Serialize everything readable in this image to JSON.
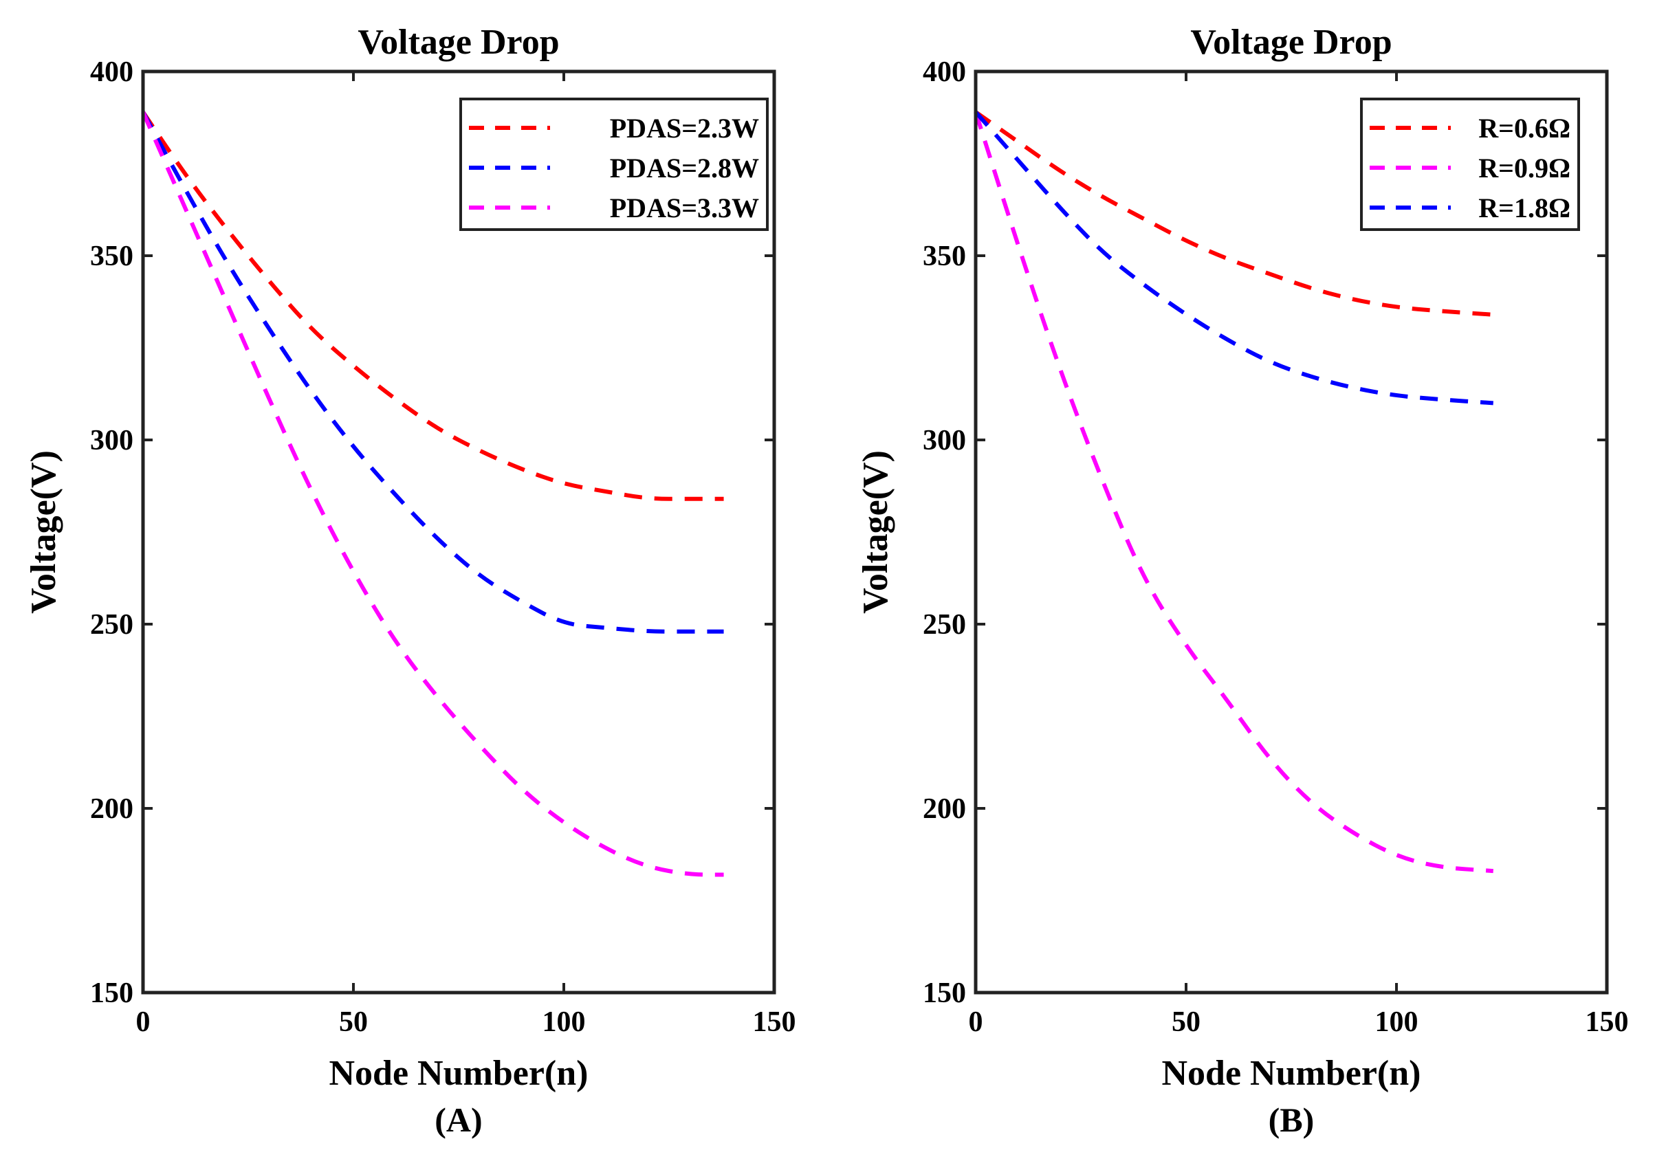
{
  "chart_data": [
    {
      "type": "line",
      "title": "Voltage Drop",
      "xlabel": "Node Number(n)",
      "ylabel": "Voltage(V)",
      "caption": "(A)",
      "xlim": [
        0,
        150
      ],
      "ylim": [
        150,
        400
      ],
      "xticks": [
        0,
        50,
        100,
        150
      ],
      "yticks": [
        150,
        200,
        250,
        300,
        350,
        400
      ],
      "grid": false,
      "legend_position": "top-right",
      "series": [
        {
          "name": "PDAS=2.3W",
          "color": "#ff0000",
          "x": [
            0,
            10,
            20,
            30,
            40,
            50,
            60,
            70,
            80,
            90,
            100,
            110,
            120,
            130,
            138
          ],
          "y": [
            389,
            372,
            357,
            343,
            330,
            320,
            311,
            303,
            297,
            292,
            288,
            286,
            284,
            284,
            284
          ]
        },
        {
          "name": "PDAS=2.8W",
          "color": "#0000ff",
          "x": [
            0,
            10,
            20,
            30,
            40,
            50,
            60,
            70,
            80,
            90,
            100,
            110,
            120,
            130,
            138
          ],
          "y": [
            389,
            368,
            348,
            330,
            313,
            298,
            285,
            273,
            263,
            256,
            250,
            249,
            248,
            248,
            248
          ]
        },
        {
          "name": "PDAS=3.3W",
          "color": "#ff00ff",
          "x": [
            0,
            10,
            20,
            30,
            40,
            50,
            60,
            70,
            80,
            90,
            100,
            110,
            120,
            130,
            138
          ],
          "y": [
            389,
            363,
            337,
            311,
            286,
            264,
            245,
            230,
            217,
            205,
            196,
            189,
            184,
            182,
            182
          ]
        }
      ]
    },
    {
      "type": "line",
      "title": "Voltage Drop",
      "xlabel": "Node Number(n)",
      "ylabel": "Voltage(V)",
      "caption": "(B)",
      "xlim": [
        0,
        150
      ],
      "ylim": [
        150,
        400
      ],
      "xticks": [
        0,
        50,
        100,
        150
      ],
      "yticks": [
        150,
        200,
        250,
        300,
        350,
        400
      ],
      "grid": false,
      "legend_position": "top-right",
      "series": [
        {
          "name": "R=0.6Ω",
          "color": "#ff0000",
          "x": [
            0,
            10,
            20,
            30,
            40,
            50,
            60,
            70,
            80,
            90,
            100,
            110,
            123
          ],
          "y": [
            389,
            381,
            373,
            366,
            360,
            354,
            349,
            345,
            341,
            338,
            336,
            335,
            334
          ]
        },
        {
          "name": "R=0.9Ω",
          "color": "#ff00ff",
          "x": [
            0,
            10,
            20,
            30,
            40,
            50,
            60,
            70,
            80,
            90,
            100,
            110,
            123
          ],
          "y": [
            389,
            353,
            319,
            289,
            262,
            244,
            229,
            213,
            201,
            193,
            187,
            184,
            183
          ]
        },
        {
          "name": "R=1.8Ω",
          "color": "#0000ff",
          "x": [
            0,
            10,
            20,
            30,
            40,
            50,
            60,
            70,
            80,
            90,
            100,
            110,
            123
          ],
          "y": [
            389,
            376,
            363,
            351,
            342,
            334,
            327,
            321,
            317,
            314,
            312,
            311,
            310
          ]
        }
      ]
    }
  ]
}
